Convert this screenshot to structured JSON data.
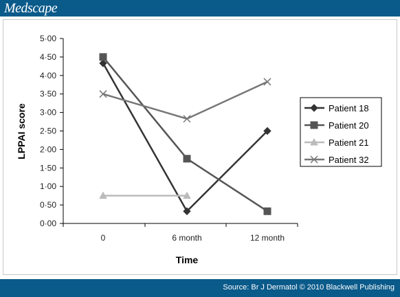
{
  "header": {
    "brand": "Medscape",
    "color": "#0a5a8a"
  },
  "footer": {
    "source": "Source: Br J Dermatol © 2010 Blackwell Publishing"
  },
  "chart_data": {
    "type": "line",
    "title": "",
    "xlabel": "Time",
    "ylabel": "LPPAI score",
    "categories": [
      "0",
      "6 month",
      "12 month"
    ],
    "ylim": [
      0,
      5
    ],
    "y_ticks": [
      "0·00",
      "0·50",
      "1·00",
      "1·50",
      "2·00",
      "2·50",
      "3·00",
      "3·50",
      "4·00",
      "4·50",
      "5·00"
    ],
    "y_tick_values": [
      0,
      0.5,
      1,
      1.5,
      2,
      2.5,
      3,
      3.5,
      4,
      4.5,
      5
    ],
    "grid": false,
    "legend_position": "right",
    "series": [
      {
        "name": "Patient 18",
        "values": [
          4.33,
          0.33,
          2.5
        ],
        "color": "#333333",
        "marker": "diamond"
      },
      {
        "name": "Patient 20",
        "values": [
          4.5,
          1.75,
          0.33
        ],
        "color": "#555555",
        "marker": "square"
      },
      {
        "name": "Patient 21",
        "values": [
          0.75,
          0.75,
          null
        ],
        "color": "#bbbbbb",
        "marker": "triangle"
      },
      {
        "name": "Patient 32",
        "values": [
          3.5,
          2.83,
          3.83
        ],
        "color": "#777777",
        "marker": "x"
      }
    ]
  }
}
